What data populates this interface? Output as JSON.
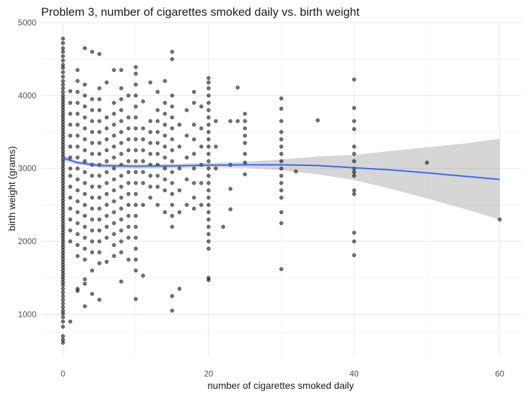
{
  "chart_data": {
    "type": "scatter",
    "title": "Problem 3, number of cigarettes smoked daily vs. birth weight",
    "xlabel": "number of cigarettes smoked daily",
    "ylabel": "birth weight (grams)",
    "xlim": [
      -3,
      63
    ],
    "ylim": [
      420,
      5000
    ],
    "x_ticks": [
      0,
      20,
      40,
      60
    ],
    "y_ticks": [
      1000,
      2000,
      3000,
      4000,
      5000
    ],
    "grid": true,
    "point_color": "#000000",
    "point_opacity": 0.55,
    "points": [
      [
        0,
        4780
      ],
      [
        0,
        4720
      ],
      [
        0,
        4650
      ],
      [
        0,
        4600
      ],
      [
        0,
        4540
      ],
      [
        0,
        4480
      ],
      [
        0,
        4420
      ],
      [
        0,
        4380
      ],
      [
        0,
        4320
      ],
      [
        0,
        4260
      ],
      [
        0,
        4200
      ],
      [
        0,
        4150
      ],
      [
        0,
        4100
      ],
      [
        0,
        4050
      ],
      [
        0,
        4000
      ],
      [
        0,
        3960
      ],
      [
        0,
        3920
      ],
      [
        0,
        3880
      ],
      [
        0,
        3840
      ],
      [
        0,
        3800
      ],
      [
        0,
        3760
      ],
      [
        0,
        3720
      ],
      [
        0,
        3680
      ],
      [
        0,
        3640
      ],
      [
        0,
        3600
      ],
      [
        0,
        3560
      ],
      [
        0,
        3520
      ],
      [
        0,
        3480
      ],
      [
        0,
        3440
      ],
      [
        0,
        3400
      ],
      [
        0,
        3360
      ],
      [
        0,
        3320
      ],
      [
        0,
        3280
      ],
      [
        0,
        3240
      ],
      [
        0,
        3200
      ],
      [
        0,
        3160
      ],
      [
        0,
        3120
      ],
      [
        0,
        3080
      ],
      [
        0,
        3040
      ],
      [
        0,
        3000
      ],
      [
        0,
        2960
      ],
      [
        0,
        2920
      ],
      [
        0,
        2880
      ],
      [
        0,
        2840
      ],
      [
        0,
        2800
      ],
      [
        0,
        2760
      ],
      [
        0,
        2720
      ],
      [
        0,
        2680
      ],
      [
        0,
        2640
      ],
      [
        0,
        2600
      ],
      [
        0,
        2560
      ],
      [
        0,
        2520
      ],
      [
        0,
        2480
      ],
      [
        0,
        2440
      ],
      [
        0,
        2400
      ],
      [
        0,
        2360
      ],
      [
        0,
        2320
      ],
      [
        0,
        2280
      ],
      [
        0,
        2240
      ],
      [
        0,
        2200
      ],
      [
        0,
        2160
      ],
      [
        0,
        2120
      ],
      [
        0,
        2080
      ],
      [
        0,
        2040
      ],
      [
        0,
        2000
      ],
      [
        0,
        1960
      ],
      [
        0,
        1920
      ],
      [
        0,
        1880
      ],
      [
        0,
        1840
      ],
      [
        0,
        1800
      ],
      [
        0,
        1760
      ],
      [
        0,
        1720
      ],
      [
        0,
        1680
      ],
      [
        0,
        1640
      ],
      [
        0,
        1600
      ],
      [
        0,
        1560
      ],
      [
        0,
        1520
      ],
      [
        0,
        1480
      ],
      [
        0,
        1440
      ],
      [
        0,
        1400
      ],
      [
        0,
        1350
      ],
      [
        0,
        1300
      ],
      [
        0,
        1250
      ],
      [
        0,
        1200
      ],
      [
        0,
        1150
      ],
      [
        0,
        1100
      ],
      [
        0,
        1050
      ],
      [
        0,
        1010
      ],
      [
        0,
        960
      ],
      [
        0,
        900
      ],
      [
        0,
        830
      ],
      [
        0,
        700
      ],
      [
        0,
        650
      ],
      [
        0,
        610
      ],
      [
        1,
        4060
      ],
      [
        1,
        3900
      ],
      [
        1,
        3750
      ],
      [
        1,
        3600
      ],
      [
        1,
        3450
      ],
      [
        1,
        3300
      ],
      [
        1,
        3150
      ],
      [
        1,
        3000
      ],
      [
        1,
        2900
      ],
      [
        1,
        2750
      ],
      [
        1,
        2600
      ],
      [
        1,
        2450
      ],
      [
        1,
        2300
      ],
      [
        1,
        2150
      ],
      [
        1,
        2000
      ],
      [
        1,
        900
      ],
      [
        2,
        4350
      ],
      [
        2,
        4200
      ],
      [
        2,
        4050
      ],
      [
        2,
        3900
      ],
      [
        2,
        3750
      ],
      [
        2,
        3600
      ],
      [
        2,
        3450
      ],
      [
        2,
        3300
      ],
      [
        2,
        3150
      ],
      [
        2,
        3000
      ],
      [
        2,
        2850
      ],
      [
        2,
        2700
      ],
      [
        2,
        2550
      ],
      [
        2,
        2400
      ],
      [
        2,
        2250
      ],
      [
        2,
        2100
      ],
      [
        2,
        1950
      ],
      [
        2,
        1800
      ],
      [
        2,
        1350
      ],
      [
        2,
        1320
      ],
      [
        3,
        4650
      ],
      [
        3,
        4150
      ],
      [
        3,
        4000
      ],
      [
        3,
        3850
      ],
      [
        3,
        3700
      ],
      [
        3,
        3550
      ],
      [
        3,
        3400
      ],
      [
        3,
        3250
      ],
      [
        3,
        3100
      ],
      [
        3,
        2950
      ],
      [
        3,
        2800
      ],
      [
        3,
        2650
      ],
      [
        3,
        2500
      ],
      [
        3,
        2350
      ],
      [
        3,
        2200
      ],
      [
        3,
        2050
      ],
      [
        3,
        1900
      ],
      [
        3,
        1750
      ],
      [
        3,
        1480
      ],
      [
        3,
        1420
      ],
      [
        3,
        1110
      ],
      [
        4,
        4600
      ],
      [
        4,
        3950
      ],
      [
        4,
        3800
      ],
      [
        4,
        3650
      ],
      [
        4,
        3500
      ],
      [
        4,
        3350
      ],
      [
        4,
        3200
      ],
      [
        4,
        3050
      ],
      [
        4,
        2900
      ],
      [
        4,
        2750
      ],
      [
        4,
        2600
      ],
      [
        4,
        2450
      ],
      [
        4,
        2300
      ],
      [
        4,
        2150
      ],
      [
        4,
        2000
      ],
      [
        4,
        1850
      ],
      [
        4,
        1600
      ],
      [
        4,
        1280
      ],
      [
        5,
        4570
      ],
      [
        5,
        4100
      ],
      [
        5,
        3950
      ],
      [
        5,
        3800
      ],
      [
        5,
        3650
      ],
      [
        5,
        3500
      ],
      [
        5,
        3350
      ],
      [
        5,
        3200
      ],
      [
        5,
        3050
      ],
      [
        5,
        2900
      ],
      [
        5,
        2750
      ],
      [
        5,
        2600
      ],
      [
        5,
        2450
      ],
      [
        5,
        2300
      ],
      [
        5,
        2150
      ],
      [
        5,
        2000
      ],
      [
        5,
        1850
      ],
      [
        5,
        1700
      ],
      [
        5,
        1200
      ],
      [
        6,
        4180
      ],
      [
        6,
        3700
      ],
      [
        6,
        3550
      ],
      [
        6,
        3400
      ],
      [
        6,
        3250
      ],
      [
        6,
        3100
      ],
      [
        6,
        2950
      ],
      [
        6,
        2800
      ],
      [
        6,
        2650
      ],
      [
        6,
        2500
      ],
      [
        6,
        2350
      ],
      [
        6,
        2200
      ],
      [
        6,
        2050
      ],
      [
        6,
        1720
      ],
      [
        7,
        4350
      ],
      [
        7,
        3900
      ],
      [
        7,
        3750
      ],
      [
        7,
        3600
      ],
      [
        7,
        3450
      ],
      [
        7,
        3300
      ],
      [
        7,
        3150
      ],
      [
        7,
        3000
      ],
      [
        7,
        2850
      ],
      [
        7,
        2700
      ],
      [
        7,
        2550
      ],
      [
        7,
        2400
      ],
      [
        7,
        2250
      ],
      [
        7,
        2100
      ],
      [
        7,
        1950
      ],
      [
        7,
        1800
      ],
      [
        8,
        4350
      ],
      [
        8,
        4100
      ],
      [
        8,
        3950
      ],
      [
        8,
        3800
      ],
      [
        8,
        3650
      ],
      [
        8,
        3500
      ],
      [
        8,
        3350
      ],
      [
        8,
        3200
      ],
      [
        8,
        3050
      ],
      [
        8,
        2900
      ],
      [
        8,
        2750
      ],
      [
        8,
        2600
      ],
      [
        8,
        2450
      ],
      [
        8,
        2300
      ],
      [
        8,
        2150
      ],
      [
        8,
        2000
      ],
      [
        8,
        1850
      ],
      [
        8,
        1450
      ],
      [
        9,
        4000
      ],
      [
        9,
        3700
      ],
      [
        9,
        3550
      ],
      [
        9,
        3400
      ],
      [
        9,
        3250
      ],
      [
        9,
        3100
      ],
      [
        9,
        2950
      ],
      [
        9,
        2800
      ],
      [
        9,
        2650
      ],
      [
        9,
        2500
      ],
      [
        9,
        2350
      ],
      [
        9,
        2200
      ],
      [
        9,
        2050
      ],
      [
        9,
        1750
      ],
      [
        10,
        4390
      ],
      [
        10,
        4300
      ],
      [
        10,
        4150
      ],
      [
        10,
        4000
      ],
      [
        10,
        3850
      ],
      [
        10,
        3700
      ],
      [
        10,
        3550
      ],
      [
        10,
        3400
      ],
      [
        10,
        3250
      ],
      [
        10,
        3100
      ],
      [
        10,
        2950
      ],
      [
        10,
        2800
      ],
      [
        10,
        2650
      ],
      [
        10,
        2500
      ],
      [
        10,
        2350
      ],
      [
        10,
        2200
      ],
      [
        10,
        2050
      ],
      [
        10,
        1900
      ],
      [
        10,
        1750
      ],
      [
        10,
        1600
      ],
      [
        10,
        1210
      ],
      [
        11,
        3920
      ],
      [
        11,
        3550
      ],
      [
        11,
        3400
      ],
      [
        11,
        3250
      ],
      [
        11,
        3100
      ],
      [
        11,
        2950
      ],
      [
        11,
        2800
      ],
      [
        11,
        2500
      ],
      [
        11,
        1530
      ],
      [
        12,
        4180
      ],
      [
        12,
        3650
      ],
      [
        12,
        3500
      ],
      [
        12,
        3350
      ],
      [
        12,
        3200
      ],
      [
        12,
        3050
      ],
      [
        12,
        2900
      ],
      [
        12,
        2750
      ],
      [
        12,
        2600
      ],
      [
        13,
        4050
      ],
      [
        13,
        3800
      ],
      [
        13,
        3650
      ],
      [
        13,
        3500
      ],
      [
        13,
        3350
      ],
      [
        13,
        3200
      ],
      [
        13,
        3050
      ],
      [
        13,
        2900
      ],
      [
        13,
        2750
      ],
      [
        13,
        2500
      ],
      [
        14,
        4200
      ],
      [
        14,
        3900
      ],
      [
        14,
        3750
      ],
      [
        14,
        3600
      ],
      [
        14,
        3450
      ],
      [
        14,
        3300
      ],
      [
        14,
        3150
      ],
      [
        14,
        3000
      ],
      [
        14,
        2850
      ],
      [
        14,
        2700
      ],
      [
        14,
        2400
      ],
      [
        15,
        4600
      ],
      [
        15,
        4500
      ],
      [
        15,
        4000
      ],
      [
        15,
        3850
      ],
      [
        15,
        3700
      ],
      [
        15,
        3550
      ],
      [
        15,
        3400
      ],
      [
        15,
        3250
      ],
      [
        15,
        3100
      ],
      [
        15,
        2950
      ],
      [
        15,
        2800
      ],
      [
        15,
        2650
      ],
      [
        15,
        2500
      ],
      [
        15,
        2350
      ],
      [
        15,
        2200
      ],
      [
        15,
        1250
      ],
      [
        15,
        1050
      ],
      [
        16,
        3600
      ],
      [
        16,
        3300
      ],
      [
        16,
        3000
      ],
      [
        16,
        2700
      ],
      [
        16,
        2400
      ],
      [
        16,
        1350
      ],
      [
        17,
        3800
      ],
      [
        17,
        3450
      ],
      [
        17,
        3150
      ],
      [
        17,
        2850
      ],
      [
        17,
        2500
      ],
      [
        18,
        4050
      ],
      [
        18,
        3900
      ],
      [
        18,
        3600
      ],
      [
        18,
        3400
      ],
      [
        18,
        3200
      ],
      [
        18,
        3000
      ],
      [
        18,
        2800
      ],
      [
        18,
        2600
      ],
      [
        18,
        2450
      ],
      [
        19,
        3850
      ],
      [
        19,
        3550
      ],
      [
        19,
        3300
      ],
      [
        19,
        3050
      ],
      [
        19,
        2800
      ],
      [
        19,
        2500
      ],
      [
        20,
        4240
      ],
      [
        20,
        4180
      ],
      [
        20,
        4100
      ],
      [
        20,
        4000
      ],
      [
        20,
        3900
      ],
      [
        20,
        3800
      ],
      [
        20,
        3700
      ],
      [
        20,
        3600
      ],
      [
        20,
        3500
      ],
      [
        20,
        3400
      ],
      [
        20,
        3300
      ],
      [
        20,
        3200
      ],
      [
        20,
        3100
      ],
      [
        20,
        3000
      ],
      [
        20,
        2900
      ],
      [
        20,
        2800
      ],
      [
        20,
        2700
      ],
      [
        20,
        2600
      ],
      [
        20,
        2500
      ],
      [
        20,
        2400
      ],
      [
        20,
        2300
      ],
      [
        20,
        2200
      ],
      [
        20,
        2100
      ],
      [
        20,
        2000
      ],
      [
        20,
        1900
      ],
      [
        20,
        1500
      ],
      [
        20,
        1470
      ],
      [
        21,
        3650
      ],
      [
        21,
        3300
      ],
      [
        21,
        3000
      ],
      [
        22,
        2200
      ],
      [
        23,
        3650
      ],
      [
        23,
        3050
      ],
      [
        23,
        2720
      ],
      [
        23,
        2440
      ],
      [
        24,
        4110
      ],
      [
        24,
        3650
      ],
      [
        25,
        3750
      ],
      [
        25,
        3650
      ],
      [
        25,
        3550
      ],
      [
        25,
        3450
      ],
      [
        25,
        3350
      ],
      [
        25,
        3200
      ],
      [
        25,
        3080
      ],
      [
        25,
        2920
      ],
      [
        30,
        3960
      ],
      [
        30,
        3820
      ],
      [
        30,
        3650
      ],
      [
        30,
        3500
      ],
      [
        30,
        3400
      ],
      [
        30,
        3300
      ],
      [
        30,
        3200
      ],
      [
        30,
        3100
      ],
      [
        30,
        3000
      ],
      [
        30,
        2900
      ],
      [
        30,
        2800
      ],
      [
        30,
        2700
      ],
      [
        30,
        2600
      ],
      [
        30,
        2400
      ],
      [
        30,
        2250
      ],
      [
        30,
        1620
      ],
      [
        32,
        2960
      ],
      [
        35,
        3660
      ],
      [
        40,
        4220
      ],
      [
        40,
        3830
      ],
      [
        40,
        3650
      ],
      [
        40,
        3540
      ],
      [
        40,
        3300
      ],
      [
        40,
        3200
      ],
      [
        40,
        3100
      ],
      [
        40,
        3000
      ],
      [
        40,
        2950
      ],
      [
        40,
        2900
      ],
      [
        40,
        2700
      ],
      [
        40,
        2650
      ],
      [
        40,
        2120
      ],
      [
        40,
        2000
      ],
      [
        40,
        1810
      ],
      [
        50,
        3080
      ],
      [
        60,
        2300
      ]
    ],
    "smooth": {
      "color": "#3366FF",
      "ribbon_color": "#999999",
      "ribbon_opacity": 0.4,
      "x": [
        0,
        2,
        5,
        10,
        15,
        20,
        25,
        30,
        35,
        40,
        45,
        50,
        55,
        60
      ],
      "y": [
        3145,
        3080,
        3040,
        3030,
        3035,
        3045,
        3050,
        3050,
        3040,
        3010,
        2980,
        2940,
        2895,
        2850
      ],
      "lower": [
        3105,
        3055,
        3010,
        3000,
        3005,
        3015,
        3010,
        2975,
        2920,
        2840,
        2720,
        2590,
        2450,
        2300
      ],
      "upper": [
        3185,
        3105,
        3070,
        3060,
        3065,
        3075,
        3090,
        3125,
        3165,
        3185,
        3240,
        3290,
        3340,
        3410
      ]
    }
  }
}
